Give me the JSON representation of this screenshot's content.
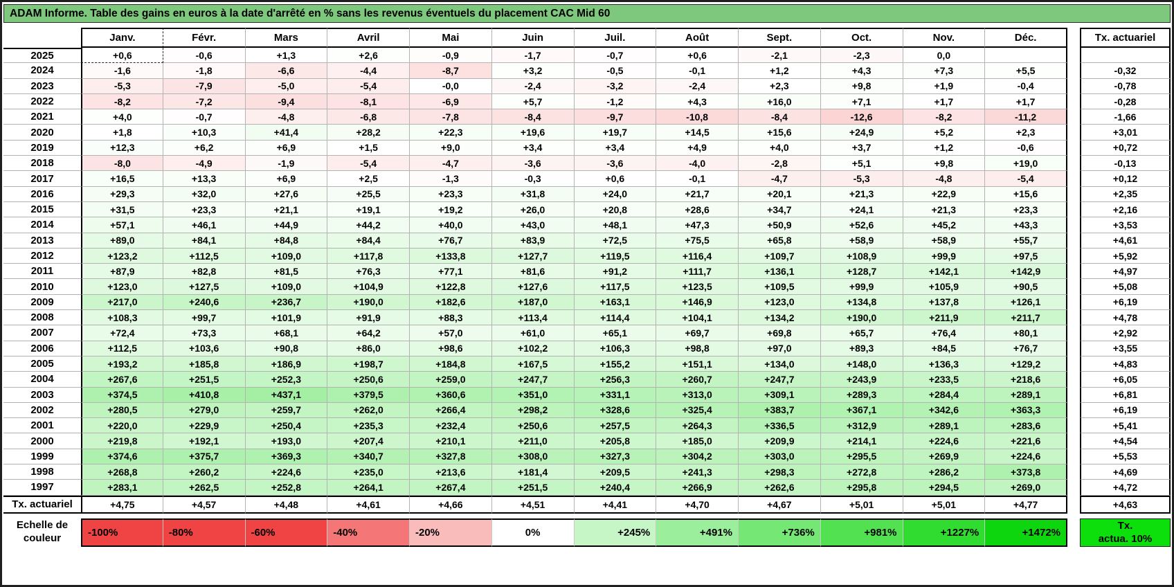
{
  "title": "ADAM Informe. Table des gains en euros à la date d'arrêté en % sans les revenus éventuels du placement CAC Mid 60",
  "columns": [
    "Janv.",
    "Févr.",
    "Mars",
    "Avril",
    "Mai",
    "Juin",
    "Juil.",
    "Août",
    "Sept.",
    "Oct.",
    "Nov.",
    "Déc."
  ],
  "tx_column_header": "Tx. actuariel",
  "tx_row_label": "Tx. actuariel",
  "rows": [
    {
      "year": "2025",
      "values": [
        "+0,6",
        "-0,6",
        "+1,3",
        "+2,6",
        "-0,9",
        "-1,7",
        "-0,7",
        "+0,6",
        "-2,1",
        "-2,3",
        "0,0",
        ""
      ],
      "tx": ""
    },
    {
      "year": "2024",
      "values": [
        "-1,6",
        "-1,8",
        "-6,6",
        "-4,4",
        "-8,7",
        "+3,2",
        "-0,5",
        "-0,1",
        "+1,2",
        "+4,3",
        "+7,3",
        "+5,5"
      ],
      "tx": "-0,32"
    },
    {
      "year": "2023",
      "values": [
        "-5,3",
        "-7,9",
        "-5,0",
        "-5,4",
        "-0,0",
        "-2,4",
        "-3,2",
        "-2,4",
        "+2,3",
        "+9,8",
        "+1,9",
        "-0,4"
      ],
      "tx": "-0,78"
    },
    {
      "year": "2022",
      "values": [
        "-8,2",
        "-7,2",
        "-9,4",
        "-8,1",
        "-6,9",
        "+5,7",
        "-1,2",
        "+4,3",
        "+16,0",
        "+7,1",
        "+1,7",
        "+1,7"
      ],
      "tx": "-0,28"
    },
    {
      "year": "2021",
      "values": [
        "+4,0",
        "-0,7",
        "-4,8",
        "-6,8",
        "-7,8",
        "-8,4",
        "-9,7",
        "-10,8",
        "-8,4",
        "-12,6",
        "-8,2",
        "-11,2"
      ],
      "tx": "-1,66"
    },
    {
      "year": "2020",
      "values": [
        "+1,8",
        "+10,3",
        "+41,4",
        "+28,2",
        "+22,3",
        "+19,6",
        "+19,7",
        "+14,5",
        "+15,6",
        "+24,9",
        "+5,2",
        "+2,3"
      ],
      "tx": "+3,01"
    },
    {
      "year": "2019",
      "values": [
        "+12,3",
        "+6,2",
        "+6,9",
        "+1,5",
        "+9,0",
        "+3,4",
        "+3,4",
        "+4,9",
        "+4,0",
        "+3,7",
        "+1,2",
        "-0,6"
      ],
      "tx": "+0,72"
    },
    {
      "year": "2018",
      "values": [
        "-8,0",
        "-4,9",
        "-1,9",
        "-5,4",
        "-4,7",
        "-3,6",
        "-3,6",
        "-4,0",
        "-2,8",
        "+5,1",
        "+9,8",
        "+19,0"
      ],
      "tx": "-0,13"
    },
    {
      "year": "2017",
      "values": [
        "+16,5",
        "+13,3",
        "+6,9",
        "+2,5",
        "-1,3",
        "-0,3",
        "+0,6",
        "-0,1",
        "-4,7",
        "-5,3",
        "-4,8",
        "-5,4"
      ],
      "tx": "+0,12"
    },
    {
      "year": "2016",
      "values": [
        "+29,3",
        "+32,0",
        "+27,6",
        "+25,5",
        "+23,3",
        "+31,8",
        "+24,0",
        "+21,7",
        "+20,1",
        "+21,3",
        "+22,9",
        "+15,6"
      ],
      "tx": "+2,35"
    },
    {
      "year": "2015",
      "values": [
        "+31,5",
        "+23,3",
        "+21,1",
        "+19,1",
        "+19,2",
        "+26,0",
        "+20,8",
        "+28,6",
        "+34,7",
        "+24,1",
        "+21,3",
        "+23,3"
      ],
      "tx": "+2,16"
    },
    {
      "year": "2014",
      "values": [
        "+57,1",
        "+46,1",
        "+44,9",
        "+44,2",
        "+40,0",
        "+43,0",
        "+48,1",
        "+47,3",
        "+50,9",
        "+52,6",
        "+45,2",
        "+43,3"
      ],
      "tx": "+3,53"
    },
    {
      "year": "2013",
      "values": [
        "+89,0",
        "+84,1",
        "+84,8",
        "+84,4",
        "+76,7",
        "+83,9",
        "+72,5",
        "+75,5",
        "+65,8",
        "+58,9",
        "+58,9",
        "+55,7"
      ],
      "tx": "+4,61"
    },
    {
      "year": "2012",
      "values": [
        "+123,2",
        "+112,5",
        "+109,0",
        "+117,8",
        "+133,8",
        "+127,7",
        "+119,5",
        "+116,4",
        "+109,7",
        "+108,9",
        "+99,9",
        "+97,5"
      ],
      "tx": "+5,92"
    },
    {
      "year": "2011",
      "values": [
        "+87,9",
        "+82,8",
        "+81,5",
        "+76,3",
        "+77,1",
        "+81,6",
        "+91,2",
        "+111,7",
        "+136,1",
        "+128,7",
        "+142,1",
        "+142,9"
      ],
      "tx": "+4,97"
    },
    {
      "year": "2010",
      "values": [
        "+123,0",
        "+127,5",
        "+109,0",
        "+104,9",
        "+122,8",
        "+127,6",
        "+117,5",
        "+123,5",
        "+109,5",
        "+99,9",
        "+105,9",
        "+90,5"
      ],
      "tx": "+5,08"
    },
    {
      "year": "2009",
      "values": [
        "+217,0",
        "+240,6",
        "+236,7",
        "+190,0",
        "+182,6",
        "+187,0",
        "+163,1",
        "+146,9",
        "+123,0",
        "+134,8",
        "+137,8",
        "+126,1"
      ],
      "tx": "+6,19"
    },
    {
      "year": "2008",
      "values": [
        "+108,3",
        "+99,7",
        "+101,9",
        "+91,9",
        "+88,3",
        "+113,4",
        "+114,4",
        "+104,1",
        "+134,2",
        "+190,0",
        "+211,9",
        "+211,7"
      ],
      "tx": "+4,78"
    },
    {
      "year": "2007",
      "values": [
        "+72,4",
        "+73,3",
        "+68,1",
        "+64,2",
        "+57,0",
        "+61,0",
        "+65,1",
        "+69,7",
        "+69,8",
        "+65,7",
        "+76,4",
        "+80,1"
      ],
      "tx": "+2,92"
    },
    {
      "year": "2006",
      "values": [
        "+112,5",
        "+103,6",
        "+90,8",
        "+86,0",
        "+98,6",
        "+102,2",
        "+106,3",
        "+98,8",
        "+97,0",
        "+89,3",
        "+84,5",
        "+76,7"
      ],
      "tx": "+3,55"
    },
    {
      "year": "2005",
      "values": [
        "+193,2",
        "+185,8",
        "+186,9",
        "+198,7",
        "+184,8",
        "+167,5",
        "+155,2",
        "+151,1",
        "+134,0",
        "+148,0",
        "+136,3",
        "+129,2"
      ],
      "tx": "+4,83"
    },
    {
      "year": "2004",
      "values": [
        "+267,6",
        "+251,5",
        "+252,3",
        "+250,6",
        "+259,0",
        "+247,7",
        "+256,3",
        "+260,7",
        "+247,7",
        "+243,9",
        "+233,5",
        "+218,6"
      ],
      "tx": "+6,05"
    },
    {
      "year": "2003",
      "values": [
        "+374,5",
        "+410,8",
        "+437,1",
        "+379,5",
        "+360,6",
        "+351,0",
        "+331,1",
        "+313,0",
        "+309,1",
        "+289,3",
        "+284,4",
        "+289,1"
      ],
      "tx": "+6,81"
    },
    {
      "year": "2002",
      "values": [
        "+280,5",
        "+279,0",
        "+259,7",
        "+262,0",
        "+266,4",
        "+298,2",
        "+328,6",
        "+325,4",
        "+383,7",
        "+367,1",
        "+342,6",
        "+363,3"
      ],
      "tx": "+6,19"
    },
    {
      "year": "2001",
      "values": [
        "+220,0",
        "+229,9",
        "+250,4",
        "+235,3",
        "+232,4",
        "+250,6",
        "+257,5",
        "+264,3",
        "+336,5",
        "+312,9",
        "+289,1",
        "+283,6"
      ],
      "tx": "+5,41"
    },
    {
      "year": "2000",
      "values": [
        "+219,8",
        "+192,1",
        "+193,0",
        "+207,4",
        "+210,1",
        "+211,0",
        "+205,8",
        "+185,0",
        "+209,9",
        "+214,1",
        "+224,6",
        "+221,6"
      ],
      "tx": "+4,54"
    },
    {
      "year": "1999",
      "values": [
        "+374,6",
        "+375,7",
        "+369,3",
        "+340,7",
        "+327,8",
        "+308,0",
        "+327,3",
        "+304,2",
        "+303,0",
        "+295,5",
        "+269,9",
        "+224,6"
      ],
      "tx": "+5,53"
    },
    {
      "year": "1998",
      "values": [
        "+268,8",
        "+260,2",
        "+224,6",
        "+235,0",
        "+213,6",
        "+181,4",
        "+209,5",
        "+241,3",
        "+298,3",
        "+272,8",
        "+286,2",
        "+373,8"
      ],
      "tx": "+4,69"
    },
    {
      "year": "1997",
      "values": [
        "+283,1",
        "+262,5",
        "+252,8",
        "+264,1",
        "+267,4",
        "+251,5",
        "+240,4",
        "+266,9",
        "+262,6",
        "+295,8",
        "+294,5",
        "+269,0"
      ],
      "tx": "+4,72"
    }
  ],
  "tx_row": {
    "values": [
      "+4,75",
      "+4,57",
      "+4,48",
      "+4,61",
      "+4,66",
      "+4,51",
      "+4,41",
      "+4,70",
      "+4,67",
      "+5,01",
      "+5,01",
      "+4,77"
    ],
    "tx": "+4,63"
  },
  "legend": {
    "label_line1": "Echelle de",
    "label_line2": "couleur",
    "cells": [
      "-100%",
      "-80%",
      "-60%",
      "-40%",
      "-20%",
      "0%",
      "+245%",
      "+491%",
      "+736%",
      "+981%",
      "+1227%",
      "+1472%"
    ],
    "tx_box_line1": "Tx.",
    "tx_box_line2": "actua. 10%"
  },
  "colors": {
    "title_bg": "#7dc87d",
    "negative_full": "#f04343",
    "positive_full": "#0ed60e",
    "tx_box_bg": "#0ddf0d",
    "grid_line": "#b3b3b3"
  },
  "selection": {
    "row_index": 0,
    "month_index": 0
  },
  "color_scale": {
    "negative_saturation_at": -55,
    "positive_max": 1472
  }
}
